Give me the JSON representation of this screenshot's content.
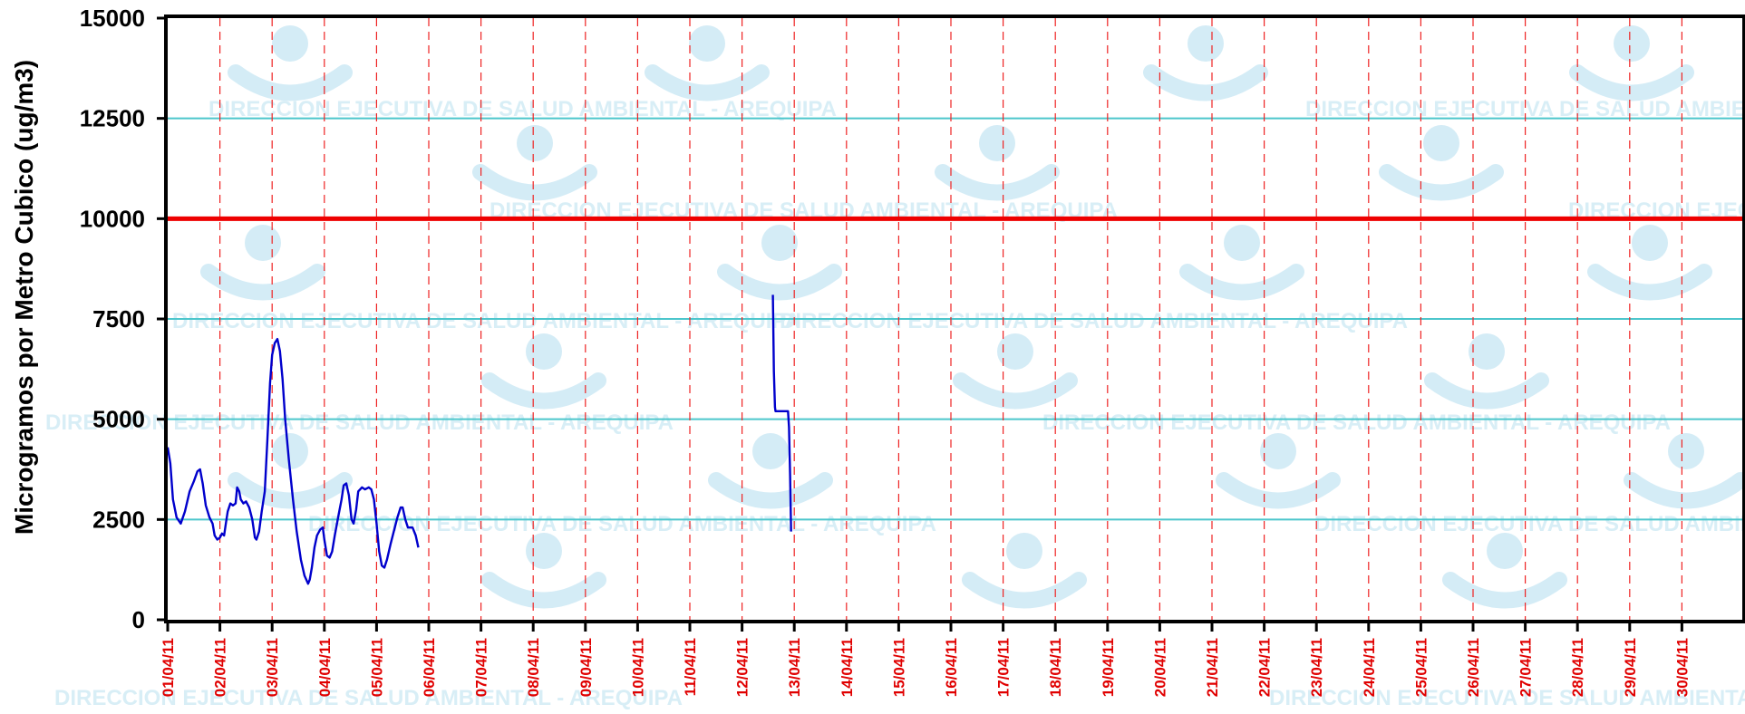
{
  "chart_data": {
    "type": "line",
    "ylabel": "Microgramos por Metro Cubico (ug/m3)",
    "xlabel": "",
    "ylim": [
      0,
      15000
    ],
    "yticks": [
      0,
      2500,
      5000,
      7500,
      10000,
      12500,
      15000
    ],
    "ytick_labels": [
      "0",
      "2500",
      "5000",
      "7500",
      "10000",
      "12500",
      "15000"
    ],
    "xlim": [
      1,
      31
    ],
    "categories": [
      "01/04/11",
      "02/04/11",
      "03/04/11",
      "04/04/11",
      "05/04/11",
      "06/04/11",
      "07/04/11",
      "08/04/11",
      "09/04/11",
      "10/04/11",
      "11/04/11",
      "12/04/11",
      "13/04/11",
      "14/04/11",
      "15/04/11",
      "16/04/11",
      "17/04/11",
      "18/04/11",
      "19/04/11",
      "20/04/11",
      "21/04/11",
      "22/04/11",
      "23/04/11",
      "24/04/11",
      "25/04/11",
      "26/04/11",
      "27/04/11",
      "28/04/11",
      "29/04/11",
      "30/04/11"
    ],
    "grid": {
      "horizontal": true,
      "vertical": true,
      "vertical_style": "dashed"
    },
    "colors": {
      "series": "#0000cc",
      "limit": "#ee0000",
      "hgrid": "#4cc6cc",
      "vgrid": "#ee2222",
      "xtick": "#e00000",
      "watermark": "#d8eef6"
    },
    "reference_lines": [
      {
        "y": 10000,
        "color": "#ee0000"
      }
    ],
    "series": [
      {
        "values": [
          [
            1.0,
            4300
          ],
          [
            1.05,
            3900
          ],
          [
            1.1,
            3000
          ],
          [
            1.17,
            2550
          ],
          [
            1.25,
            2400
          ],
          [
            1.33,
            2700
          ],
          [
            1.42,
            3200
          ],
          [
            1.5,
            3450
          ],
          [
            1.57,
            3700
          ],
          [
            1.62,
            3750
          ],
          [
            1.67,
            3400
          ],
          [
            1.73,
            2850
          ],
          [
            1.8,
            2550
          ],
          [
            1.86,
            2400
          ],
          [
            1.9,
            2100
          ],
          [
            1.95,
            2000
          ],
          [
            2.0,
            2050
          ],
          [
            2.04,
            2150
          ],
          [
            2.08,
            2100
          ],
          [
            2.12,
            2450
          ],
          [
            2.15,
            2700
          ],
          [
            2.2,
            2900
          ],
          [
            2.25,
            2850
          ],
          [
            2.3,
            2900
          ],
          [
            2.33,
            3300
          ],
          [
            2.37,
            3200
          ],
          [
            2.4,
            3000
          ],
          [
            2.45,
            2900
          ],
          [
            2.5,
            2950
          ],
          [
            2.56,
            2800
          ],
          [
            2.62,
            2500
          ],
          [
            2.67,
            2050
          ],
          [
            2.7,
            2000
          ],
          [
            2.75,
            2200
          ],
          [
            2.8,
            2700
          ],
          [
            2.86,
            3200
          ],
          [
            2.91,
            4500
          ],
          [
            2.96,
            5900
          ],
          [
            3.0,
            6600
          ],
          [
            3.05,
            6900
          ],
          [
            3.1,
            7000
          ],
          [
            3.15,
            6700
          ],
          [
            3.2,
            6000
          ],
          [
            3.25,
            5000
          ],
          [
            3.32,
            4000
          ],
          [
            3.4,
            3000
          ],
          [
            3.47,
            2200
          ],
          [
            3.55,
            1500
          ],
          [
            3.62,
            1100
          ],
          [
            3.69,
            900
          ],
          [
            3.72,
            1000
          ],
          [
            3.76,
            1300
          ],
          [
            3.81,
            1800
          ],
          [
            3.86,
            2100
          ],
          [
            3.92,
            2250
          ],
          [
            3.97,
            2300
          ],
          [
            4.0,
            2000
          ],
          [
            4.05,
            1600
          ],
          [
            4.1,
            1550
          ],
          [
            4.15,
            1700
          ],
          [
            4.2,
            2100
          ],
          [
            4.27,
            2600
          ],
          [
            4.33,
            3000
          ],
          [
            4.37,
            3350
          ],
          [
            4.42,
            3400
          ],
          [
            4.47,
            3100
          ],
          [
            4.52,
            2500
          ],
          [
            4.56,
            2400
          ],
          [
            4.61,
            2750
          ],
          [
            4.65,
            3200
          ],
          [
            4.72,
            3300
          ],
          [
            4.78,
            3250
          ],
          [
            4.85,
            3300
          ],
          [
            4.9,
            3250
          ],
          [
            4.95,
            3000
          ],
          [
            5.0,
            2400
          ],
          [
            5.05,
            1700
          ],
          [
            5.1,
            1350
          ],
          [
            5.15,
            1300
          ],
          [
            5.2,
            1500
          ],
          [
            5.27,
            1900
          ],
          [
            5.33,
            2200
          ],
          [
            5.4,
            2550
          ],
          [
            5.46,
            2800
          ],
          [
            5.5,
            2800
          ],
          [
            5.55,
            2500
          ],
          [
            5.6,
            2300
          ],
          [
            5.64,
            2300
          ],
          [
            5.69,
            2300
          ],
          [
            5.75,
            2100
          ],
          [
            5.8,
            1800
          ]
        ]
      },
      {
        "values": [
          [
            12.59,
            8100
          ],
          [
            12.61,
            6200
          ],
          [
            12.63,
            5300
          ],
          [
            12.64,
            5200
          ],
          [
            12.7,
            5200
          ],
          [
            12.8,
            5200
          ],
          [
            12.88,
            5200
          ],
          [
            12.9,
            4800
          ],
          [
            12.92,
            3600
          ],
          [
            12.94,
            2200
          ]
        ]
      }
    ]
  },
  "watermark": {
    "text_fragments": [
      "DIRECCION EJECUTIVA DE SALUD AMBIENTAL - AREQUIPA"
    ]
  }
}
